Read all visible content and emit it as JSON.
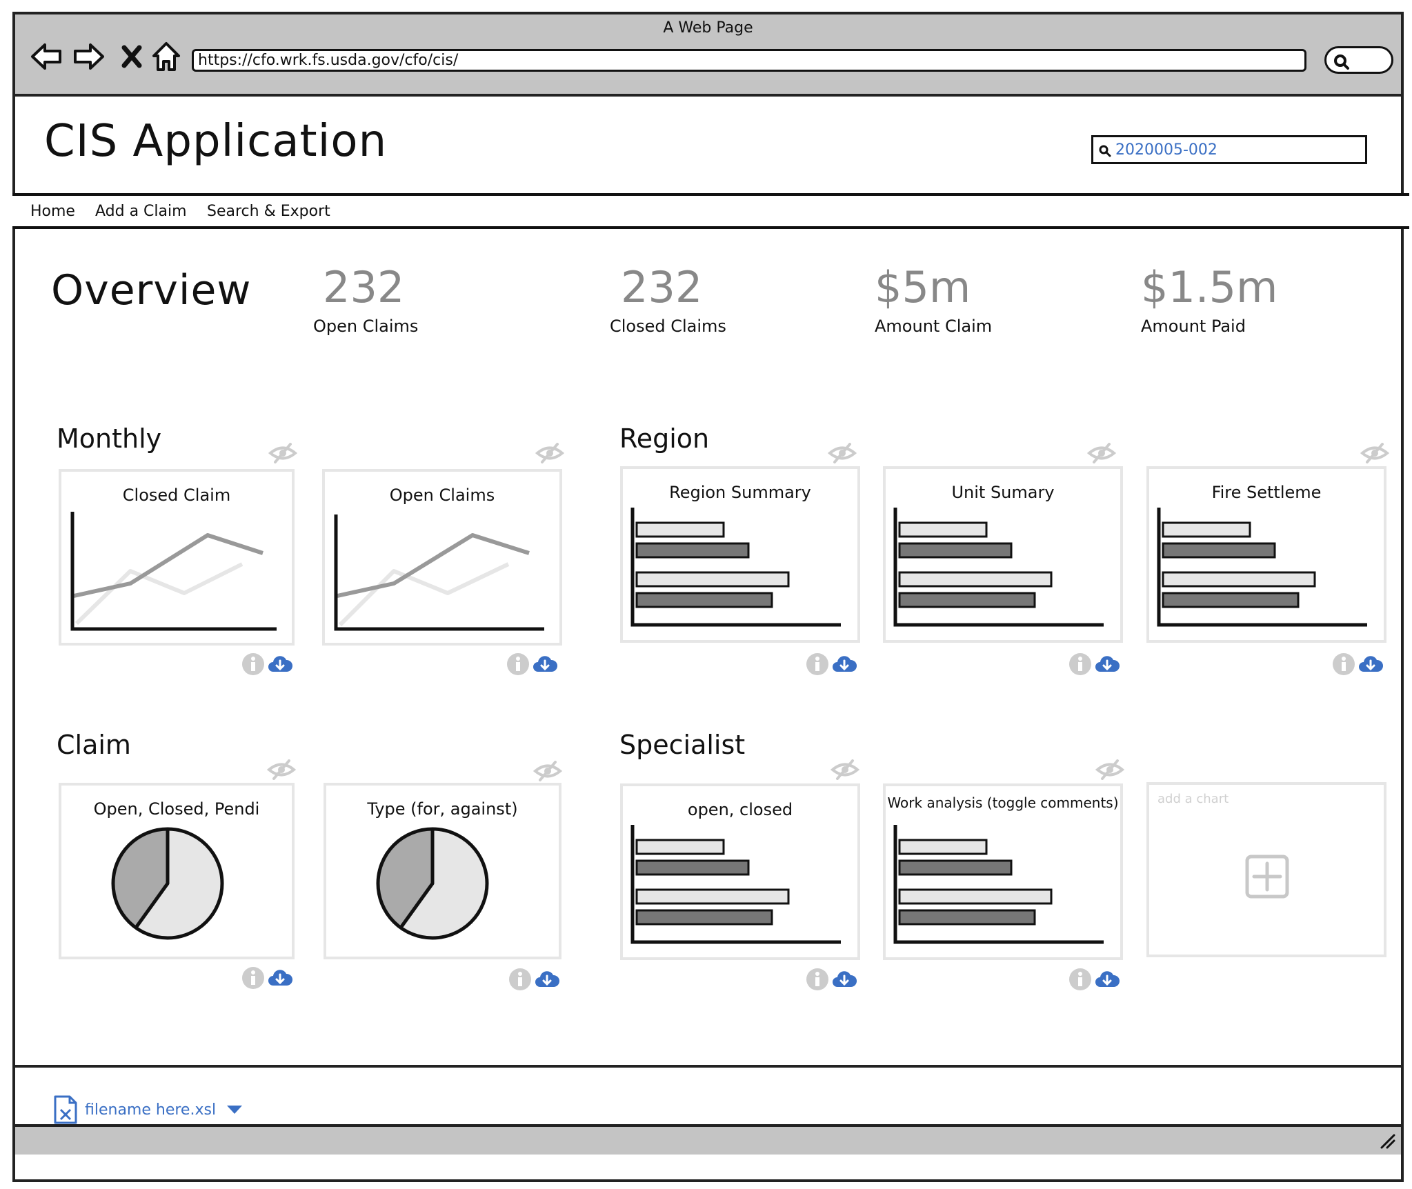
{
  "browser": {
    "window_title": "A Web Page",
    "url": "https://cfo.wrk.fs.usda.gov/cfo/cis/"
  },
  "app": {
    "title": "CIS Application",
    "search_value": "2020005-002"
  },
  "nav": {
    "items": [
      "Home",
      "Add a Claim",
      "Search & Export"
    ]
  },
  "overview": {
    "title": "Overview",
    "stats": [
      {
        "value": "232",
        "label": "Open Claims"
      },
      {
        "value": "232",
        "label": "Closed Claims"
      },
      {
        "value": "$5m",
        "label": "Amount Claim"
      },
      {
        "value": "$1.5m",
        "label": "Amount Paid"
      }
    ]
  },
  "sections": {
    "monthly": {
      "title": "Monthly",
      "cards": [
        {
          "title": "Closed Claim",
          "chart": "line"
        },
        {
          "title": "Open Claims",
          "chart": "line"
        }
      ]
    },
    "region": {
      "title": "Region",
      "cards": [
        {
          "title": "Region Summary",
          "chart": "bar"
        },
        {
          "title": "Unit Sumary",
          "chart": "bar"
        },
        {
          "title": "Fire Settleme",
          "chart": "bar"
        }
      ]
    },
    "claim": {
      "title": "Claim",
      "cards": [
        {
          "title": "Open, Closed, Pendi",
          "chart": "pie"
        },
        {
          "title": "Type (for, against)",
          "chart": "pie"
        }
      ]
    },
    "specialist": {
      "title": "Specialist",
      "cards": [
        {
          "title": "open, closed",
          "chart": "bar"
        },
        {
          "title": "Work analysis (toggle comments)",
          "chart": "bar"
        }
      ],
      "add_card_label": "add a chart"
    }
  },
  "icons": {
    "back": "back-arrow-icon",
    "forward": "forward-arrow-icon",
    "stop": "close-icon",
    "home": "home-icon",
    "search": "search-icon",
    "visibility": "eye-slash-icon",
    "info": "info-icon",
    "download": "cloud-download-icon",
    "add": "plus-square-icon",
    "file": "excel-file-icon",
    "dropdown": "caret-down-icon"
  },
  "colors": {
    "chrome": "#c4c4c4",
    "link": "#3a6fc4",
    "muted_value": "#888888",
    "chart_dark": "#777777",
    "chart_light": "#e6e6e6"
  },
  "footer": {
    "file_name": "filename here.xsl"
  }
}
